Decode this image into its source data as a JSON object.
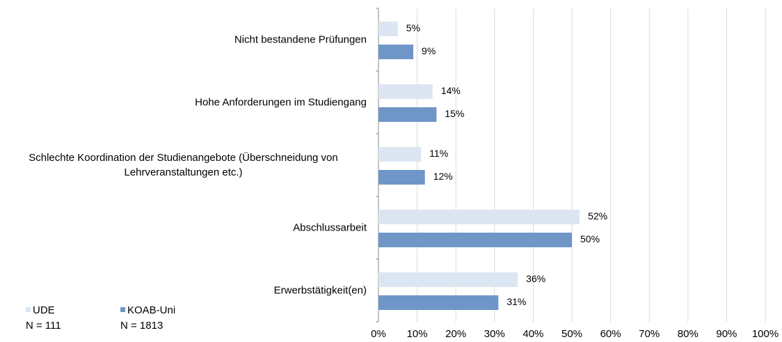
{
  "chart_data": {
    "type": "bar",
    "orientation": "horizontal",
    "categories": [
      "Nicht bestandene Prüfungen",
      "Hohe Anforderungen im Studiengang",
      "Schlechte Koordination der Studienangebote (Überschneidung von Lehrveranstaltungen etc.)",
      "Abschlussarbeit",
      "Erwerbstätigkeit(en)"
    ],
    "series": [
      {
        "name": "UDE",
        "sub": "N = 111",
        "color": "#dce6f2",
        "values": [
          5,
          14,
          11,
          52,
          36
        ],
        "value_labels": [
          "5%",
          "14%",
          "11%",
          "52%",
          "36%"
        ]
      },
      {
        "name": "KOAB-Uni",
        "sub": "N = 1813",
        "color": "#7096c8",
        "values": [
          9,
          15,
          12,
          50,
          31
        ],
        "value_labels": [
          "9%",
          "15%",
          "12%",
          "50%",
          "31%"
        ]
      }
    ],
    "xlim": [
      0,
      100
    ],
    "xticks": [
      {
        "value": 0,
        "label": "0%"
      },
      {
        "value": 10,
        "label": "10%"
      },
      {
        "value": 20,
        "label": "20%"
      },
      {
        "value": 30,
        "label": "30%"
      },
      {
        "value": 40,
        "label": "40%"
      },
      {
        "value": 50,
        "label": "50%"
      },
      {
        "value": 60,
        "label": "60%"
      },
      {
        "value": 70,
        "label": "70%"
      },
      {
        "value": 80,
        "label": "80%"
      },
      {
        "value": 90,
        "label": "90%"
      },
      {
        "value": 100,
        "label": "100%"
      }
    ],
    "grid": true,
    "legend": "bottom-left"
  }
}
